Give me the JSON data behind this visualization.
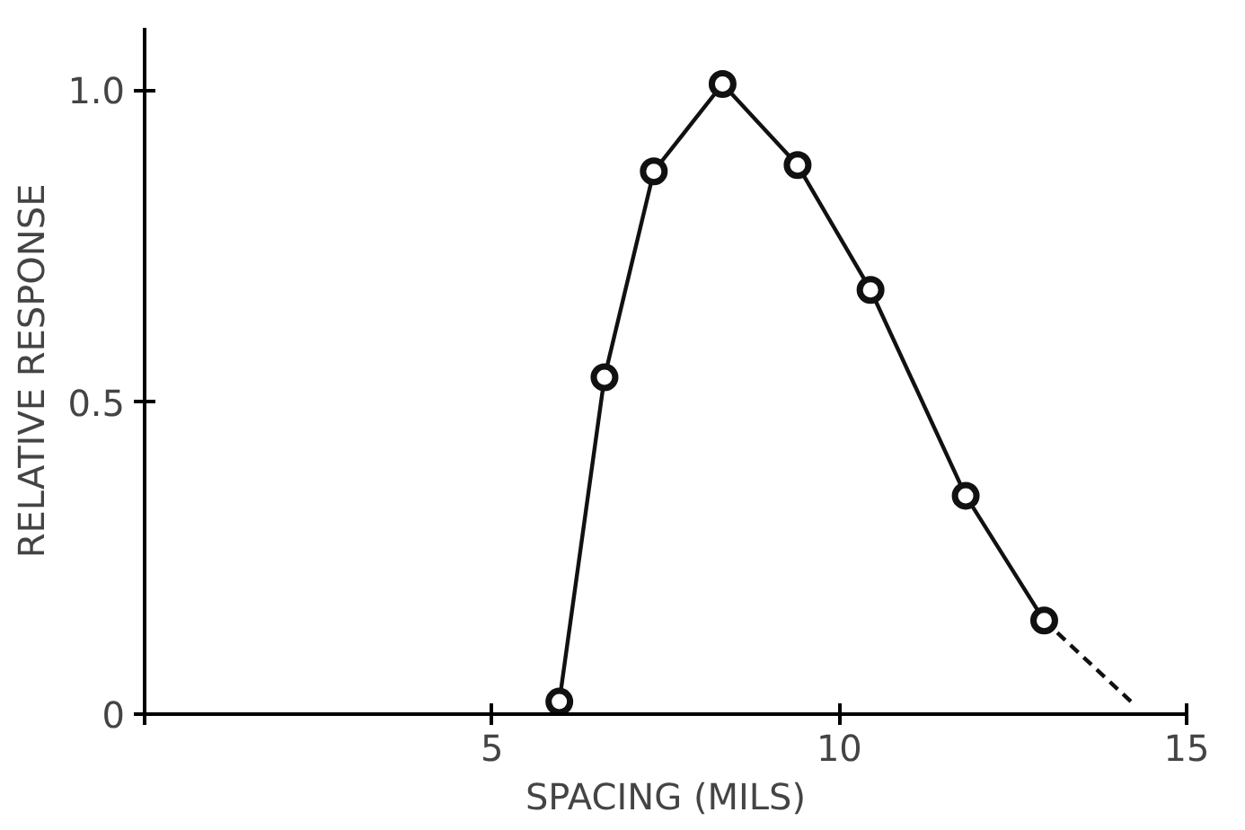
{
  "chart_data": {
    "type": "scatter",
    "xlabel": "SPACING (MILS)",
    "ylabel": "RELATIVE RESPONSE",
    "xlim": [
      0,
      15
    ],
    "ylim": [
      0,
      1.1
    ],
    "xticks": [
      {
        "value": 0,
        "label": null
      },
      5,
      10,
      15
    ],
    "yticks": [
      0,
      0.5,
      {
        "value": 1.0,
        "label": "1.0"
      }
    ],
    "grid": false,
    "series": [
      {
        "type": "line",
        "color": "#111111",
        "line_style": "solid",
        "marker": "none",
        "x": [
          5.97,
          6.62,
          7.33,
          8.32,
          9.4,
          10.45,
          11.82,
          12.95
        ],
        "values": [
          0.02,
          0.54,
          0.87,
          1.01,
          0.88,
          0.68,
          0.35,
          0.15
        ]
      },
      {
        "type": "line",
        "color": "#111111",
        "line_style": "dashed",
        "marker": "none",
        "x": [
          12.95,
          14.2
        ],
        "values": [
          0.15,
          0.02
        ]
      },
      {
        "color": "#111111",
        "marker": "circle",
        "x": [
          5.97,
          6.62,
          7.33,
          8.32,
          9.4,
          10.45,
          11.82,
          12.95
        ],
        "values": [
          0.02,
          0.54,
          0.87,
          1.01,
          0.88,
          0.68,
          0.35,
          0.15
        ]
      }
    ]
  }
}
